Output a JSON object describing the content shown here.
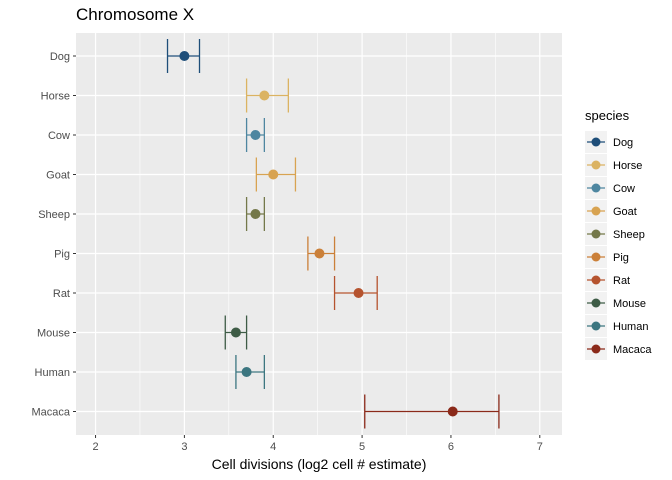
{
  "chart_data": {
    "type": "scatter",
    "subtype": "dot-with-horizontal-errorbars",
    "title": "Chromosome X",
    "xlabel": "Cell divisions (log2 cell # estimate)",
    "ylabel": "",
    "xlim": [
      1.78,
      7.25
    ],
    "x_ticks": [
      2,
      3,
      4,
      5,
      6,
      7
    ],
    "grid": true,
    "legend": {
      "title": "species",
      "position": "right"
    },
    "series": [
      {
        "name": "Dog",
        "x": 3.0,
        "xmin": 2.81,
        "xmax": 3.17,
        "color": "#1e4e79"
      },
      {
        "name": "Horse",
        "x": 3.9,
        "xmin": 3.7,
        "xmax": 4.17,
        "color": "#dbb362"
      },
      {
        "name": "Cow",
        "x": 3.8,
        "xmin": 3.7,
        "xmax": 3.9,
        "color": "#4e86a0"
      },
      {
        "name": "Goat",
        "x": 4.0,
        "xmin": 3.81,
        "xmax": 4.25,
        "color": "#d8a351"
      },
      {
        "name": "Sheep",
        "x": 3.8,
        "xmin": 3.7,
        "xmax": 3.9,
        "color": "#74784a"
      },
      {
        "name": "Pig",
        "x": 4.52,
        "xmin": 4.39,
        "xmax": 4.69,
        "color": "#cb8039"
      },
      {
        "name": "Rat",
        "x": 4.96,
        "xmin": 4.69,
        "xmax": 5.17,
        "color": "#b5532e"
      },
      {
        "name": "Mouse",
        "x": 3.58,
        "xmin": 3.46,
        "xmax": 3.7,
        "color": "#3e5c46"
      },
      {
        "name": "Human",
        "x": 3.7,
        "xmin": 3.58,
        "xmax": 3.9,
        "color": "#3c7680"
      },
      {
        "name": "Macaca",
        "x": 6.02,
        "xmin": 5.03,
        "xmax": 6.54,
        "color": "#8b2a1a"
      }
    ]
  }
}
